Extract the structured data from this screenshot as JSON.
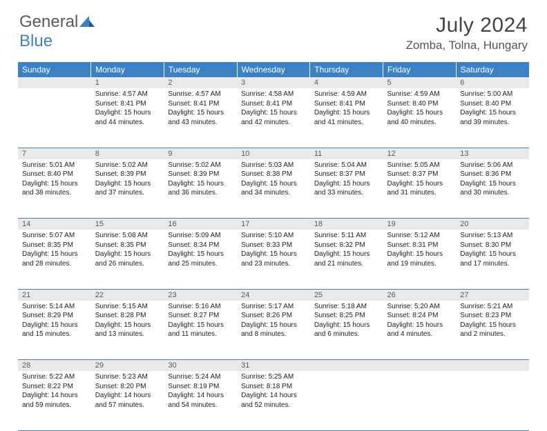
{
  "logo": {
    "text1": "General",
    "text2": "Blue"
  },
  "title": "July 2024",
  "location": "Zomba, Tolna, Hungary",
  "colors": {
    "header_bg": "#3b82c4",
    "header_fg": "#ffffff",
    "daynum_bg": "#e9e9e9",
    "daynum_fg": "#5a5a5a",
    "border": "#3b82c4",
    "text": "#222222"
  },
  "weekdays": [
    "Sunday",
    "Monday",
    "Tuesday",
    "Wednesday",
    "Thursday",
    "Friday",
    "Saturday"
  ],
  "weeks": [
    [
      {
        "n": "",
        "sunrise": "",
        "sunset": "",
        "daylight": ""
      },
      {
        "n": "1",
        "sunrise": "Sunrise: 4:57 AM",
        "sunset": "Sunset: 8:41 PM",
        "daylight": "Daylight: 15 hours and 44 minutes."
      },
      {
        "n": "2",
        "sunrise": "Sunrise: 4:57 AM",
        "sunset": "Sunset: 8:41 PM",
        "daylight": "Daylight: 15 hours and 43 minutes."
      },
      {
        "n": "3",
        "sunrise": "Sunrise: 4:58 AM",
        "sunset": "Sunset: 8:41 PM",
        "daylight": "Daylight: 15 hours and 42 minutes."
      },
      {
        "n": "4",
        "sunrise": "Sunrise: 4:59 AM",
        "sunset": "Sunset: 8:41 PM",
        "daylight": "Daylight: 15 hours and 41 minutes."
      },
      {
        "n": "5",
        "sunrise": "Sunrise: 4:59 AM",
        "sunset": "Sunset: 8:40 PM",
        "daylight": "Daylight: 15 hours and 40 minutes."
      },
      {
        "n": "6",
        "sunrise": "Sunrise: 5:00 AM",
        "sunset": "Sunset: 8:40 PM",
        "daylight": "Daylight: 15 hours and 39 minutes."
      }
    ],
    [
      {
        "n": "7",
        "sunrise": "Sunrise: 5:01 AM",
        "sunset": "Sunset: 8:40 PM",
        "daylight": "Daylight: 15 hours and 38 minutes."
      },
      {
        "n": "8",
        "sunrise": "Sunrise: 5:02 AM",
        "sunset": "Sunset: 8:39 PM",
        "daylight": "Daylight: 15 hours and 37 minutes."
      },
      {
        "n": "9",
        "sunrise": "Sunrise: 5:02 AM",
        "sunset": "Sunset: 8:39 PM",
        "daylight": "Daylight: 15 hours and 36 minutes."
      },
      {
        "n": "10",
        "sunrise": "Sunrise: 5:03 AM",
        "sunset": "Sunset: 8:38 PM",
        "daylight": "Daylight: 15 hours and 34 minutes."
      },
      {
        "n": "11",
        "sunrise": "Sunrise: 5:04 AM",
        "sunset": "Sunset: 8:37 PM",
        "daylight": "Daylight: 15 hours and 33 minutes."
      },
      {
        "n": "12",
        "sunrise": "Sunrise: 5:05 AM",
        "sunset": "Sunset: 8:37 PM",
        "daylight": "Daylight: 15 hours and 31 minutes."
      },
      {
        "n": "13",
        "sunrise": "Sunrise: 5:06 AM",
        "sunset": "Sunset: 8:36 PM",
        "daylight": "Daylight: 15 hours and 30 minutes."
      }
    ],
    [
      {
        "n": "14",
        "sunrise": "Sunrise: 5:07 AM",
        "sunset": "Sunset: 8:35 PM",
        "daylight": "Daylight: 15 hours and 28 minutes."
      },
      {
        "n": "15",
        "sunrise": "Sunrise: 5:08 AM",
        "sunset": "Sunset: 8:35 PM",
        "daylight": "Daylight: 15 hours and 26 minutes."
      },
      {
        "n": "16",
        "sunrise": "Sunrise: 5:09 AM",
        "sunset": "Sunset: 8:34 PM",
        "daylight": "Daylight: 15 hours and 25 minutes."
      },
      {
        "n": "17",
        "sunrise": "Sunrise: 5:10 AM",
        "sunset": "Sunset: 8:33 PM",
        "daylight": "Daylight: 15 hours and 23 minutes."
      },
      {
        "n": "18",
        "sunrise": "Sunrise: 5:11 AM",
        "sunset": "Sunset: 8:32 PM",
        "daylight": "Daylight: 15 hours and 21 minutes."
      },
      {
        "n": "19",
        "sunrise": "Sunrise: 5:12 AM",
        "sunset": "Sunset: 8:31 PM",
        "daylight": "Daylight: 15 hours and 19 minutes."
      },
      {
        "n": "20",
        "sunrise": "Sunrise: 5:13 AM",
        "sunset": "Sunset: 8:30 PM",
        "daylight": "Daylight: 15 hours and 17 minutes."
      }
    ],
    [
      {
        "n": "21",
        "sunrise": "Sunrise: 5:14 AM",
        "sunset": "Sunset: 8:29 PM",
        "daylight": "Daylight: 15 hours and 15 minutes."
      },
      {
        "n": "22",
        "sunrise": "Sunrise: 5:15 AM",
        "sunset": "Sunset: 8:28 PM",
        "daylight": "Daylight: 15 hours and 13 minutes."
      },
      {
        "n": "23",
        "sunrise": "Sunrise: 5:16 AM",
        "sunset": "Sunset: 8:27 PM",
        "daylight": "Daylight: 15 hours and 11 minutes."
      },
      {
        "n": "24",
        "sunrise": "Sunrise: 5:17 AM",
        "sunset": "Sunset: 8:26 PM",
        "daylight": "Daylight: 15 hours and 8 minutes."
      },
      {
        "n": "25",
        "sunrise": "Sunrise: 5:18 AM",
        "sunset": "Sunset: 8:25 PM",
        "daylight": "Daylight: 15 hours and 6 minutes."
      },
      {
        "n": "26",
        "sunrise": "Sunrise: 5:20 AM",
        "sunset": "Sunset: 8:24 PM",
        "daylight": "Daylight: 15 hours and 4 minutes."
      },
      {
        "n": "27",
        "sunrise": "Sunrise: 5:21 AM",
        "sunset": "Sunset: 8:23 PM",
        "daylight": "Daylight: 15 hours and 2 minutes."
      }
    ],
    [
      {
        "n": "28",
        "sunrise": "Sunrise: 5:22 AM",
        "sunset": "Sunset: 8:22 PM",
        "daylight": "Daylight: 14 hours and 59 minutes."
      },
      {
        "n": "29",
        "sunrise": "Sunrise: 5:23 AM",
        "sunset": "Sunset: 8:20 PM",
        "daylight": "Daylight: 14 hours and 57 minutes."
      },
      {
        "n": "30",
        "sunrise": "Sunrise: 5:24 AM",
        "sunset": "Sunset: 8:19 PM",
        "daylight": "Daylight: 14 hours and 54 minutes."
      },
      {
        "n": "31",
        "sunrise": "Sunrise: 5:25 AM",
        "sunset": "Sunset: 8:18 PM",
        "daylight": "Daylight: 14 hours and 52 minutes."
      },
      {
        "n": "",
        "sunrise": "",
        "sunset": "",
        "daylight": ""
      },
      {
        "n": "",
        "sunrise": "",
        "sunset": "",
        "daylight": ""
      },
      {
        "n": "",
        "sunrise": "",
        "sunset": "",
        "daylight": ""
      }
    ]
  ]
}
